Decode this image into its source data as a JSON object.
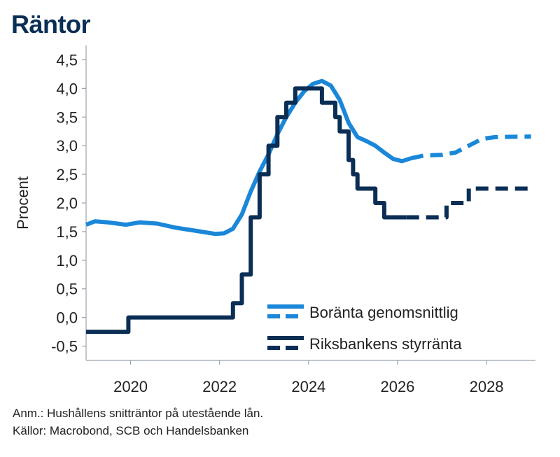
{
  "page": {
    "title": "Räntor",
    "notes": [
      "Anm.: Hushållens snitträntor på utestående lån.",
      "Källor: Macrobond, SCB och Handelsbanken"
    ]
  },
  "chart_data": {
    "type": "line",
    "title": "Räntor",
    "ylabel": "Procent",
    "xlabel": "",
    "xlim": [
      2019.0,
      2029.1
    ],
    "ylim": [
      -0.75,
      4.75
    ],
    "x_ticks": [
      2020,
      2022,
      2024,
      2026,
      2028
    ],
    "x_tick_labels": [
      "2020",
      "2022",
      "2024",
      "2026",
      "2028"
    ],
    "y_ticks": [
      -0.5,
      0,
      0.5,
      1,
      1.5,
      2,
      2.5,
      3,
      3.5,
      4,
      4.5
    ],
    "y_tick_labels": [
      "-0,5",
      "0,0",
      "0,5",
      "1,0",
      "1,5",
      "2,0",
      "2,5",
      "3,0",
      "3,5",
      "4,0",
      "4,5"
    ],
    "grid": false,
    "legend_position": "bottom-right",
    "series": [
      {
        "name": "Boränta genomsnittlig",
        "color": "#1a87d9",
        "step": false,
        "points": [
          [
            2019.0,
            1.62
          ],
          [
            2019.2,
            1.68
          ],
          [
            2019.5,
            1.66
          ],
          [
            2019.9,
            1.62
          ],
          [
            2020.2,
            1.66
          ],
          [
            2020.6,
            1.64
          ],
          [
            2021.0,
            1.57
          ],
          [
            2021.5,
            1.51
          ],
          [
            2021.9,
            1.46
          ],
          [
            2022.1,
            1.47
          ],
          [
            2022.3,
            1.55
          ],
          [
            2022.5,
            1.8
          ],
          [
            2022.7,
            2.2
          ],
          [
            2022.9,
            2.55
          ],
          [
            2023.1,
            2.85
          ],
          [
            2023.3,
            3.2
          ],
          [
            2023.5,
            3.5
          ],
          [
            2023.7,
            3.75
          ],
          [
            2023.9,
            3.95
          ],
          [
            2024.1,
            4.08
          ],
          [
            2024.3,
            4.13
          ],
          [
            2024.5,
            4.05
          ],
          [
            2024.7,
            3.8
          ],
          [
            2024.9,
            3.4
          ],
          [
            2025.1,
            3.15
          ],
          [
            2025.3,
            3.08
          ],
          [
            2025.5,
            3.0
          ],
          [
            2025.7,
            2.88
          ],
          [
            2025.9,
            2.77
          ],
          [
            2026.1,
            2.73
          ],
          [
            2026.3,
            2.78
          ]
        ],
        "forecast_points": [
          [
            2026.3,
            2.78
          ],
          [
            2026.6,
            2.83
          ],
          [
            2027.0,
            2.84
          ],
          [
            2027.3,
            2.88
          ],
          [
            2027.6,
            3.0
          ],
          [
            2027.9,
            3.12
          ],
          [
            2028.2,
            3.15
          ],
          [
            2029.0,
            3.16
          ]
        ]
      },
      {
        "name": "Riksbankens styrränta",
        "color": "#0b2e55",
        "step": true,
        "points": [
          [
            2019.0,
            -0.25
          ],
          [
            2019.95,
            0.0
          ],
          [
            2022.3,
            0.25
          ],
          [
            2022.5,
            0.75
          ],
          [
            2022.7,
            1.75
          ],
          [
            2022.9,
            2.5
          ],
          [
            2023.1,
            3.0
          ],
          [
            2023.3,
            3.5
          ],
          [
            2023.5,
            3.75
          ],
          [
            2023.7,
            4.0
          ],
          [
            2024.3,
            3.75
          ],
          [
            2024.6,
            3.5
          ],
          [
            2024.7,
            3.25
          ],
          [
            2024.9,
            2.75
          ],
          [
            2025.0,
            2.5
          ],
          [
            2025.1,
            2.25
          ],
          [
            2025.5,
            2.0
          ],
          [
            2025.7,
            1.75
          ],
          [
            2026.2,
            1.75
          ]
        ],
        "forecast_points": [
          [
            2026.2,
            1.75
          ],
          [
            2027.1,
            2.0
          ],
          [
            2027.6,
            2.25
          ],
          [
            2029.0,
            2.25
          ]
        ]
      }
    ],
    "legend": [
      {
        "label": "Boränta genomsnittlig",
        "color": "#1a87d9"
      },
      {
        "label": "Riksbankens styrränta",
        "color": "#0b2e55"
      }
    ]
  }
}
